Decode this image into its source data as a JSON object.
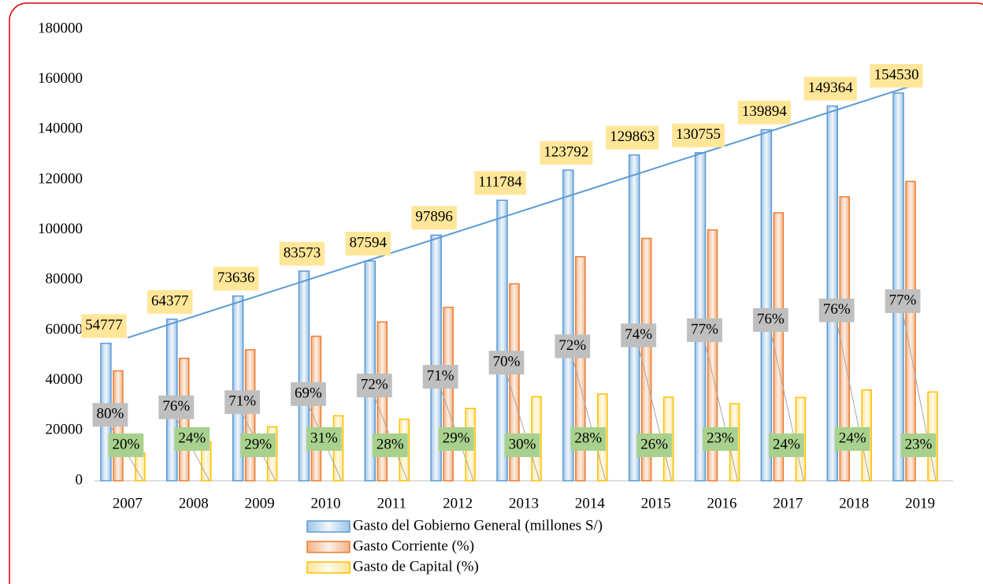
{
  "chart_data": {
    "type": "bar",
    "categories": [
      "2007",
      "2008",
      "2009",
      "2010",
      "2011",
      "2012",
      "2013",
      "2014",
      "2015",
      "2016",
      "2017",
      "2018",
      "2019"
    ],
    "series": [
      {
        "name": "Gasto del Gobierno General (millones S/)",
        "color": "#5b9bd5",
        "values": [
          54777,
          64377,
          73636,
          83573,
          87594,
          97896,
          111784,
          123792,
          129863,
          130755,
          139894,
          149364,
          154530
        ]
      },
      {
        "name": "Gasto Corriente (%)",
        "color": "#ed7d31",
        "values": [
          43800,
          48800,
          52200,
          57600,
          63300,
          69100,
          78500,
          89300,
          96600,
          100000,
          106800,
          113200,
          119300
        ],
        "labels": [
          "80%",
          "76%",
          "71%",
          "69%",
          "72%",
          "71%",
          "70%",
          "72%",
          "74%",
          "77%",
          "76%",
          "76%",
          "77%"
        ]
      },
      {
        "name": "Gasto de Capital (%)",
        "color": "#ffc000",
        "values": [
          11000,
          15500,
          21500,
          25900,
          24500,
          28800,
          33500,
          34600,
          33300,
          30700,
          33200,
          36200,
          35400
        ],
        "labels": [
          "20%",
          "24%",
          "29%",
          "31%",
          "28%",
          "29%",
          "30%",
          "28%",
          "26%",
          "23%",
          "24%",
          "24%",
          "23%"
        ]
      }
    ],
    "trendline": {
      "color": "#5b9bd5",
      "start": 57000,
      "end": 158500
    },
    "ylim": [
      0,
      180000
    ],
    "yticks": [
      0,
      20000,
      40000,
      60000,
      80000,
      100000,
      120000,
      140000,
      160000,
      180000
    ],
    "legend": "bottom"
  }
}
